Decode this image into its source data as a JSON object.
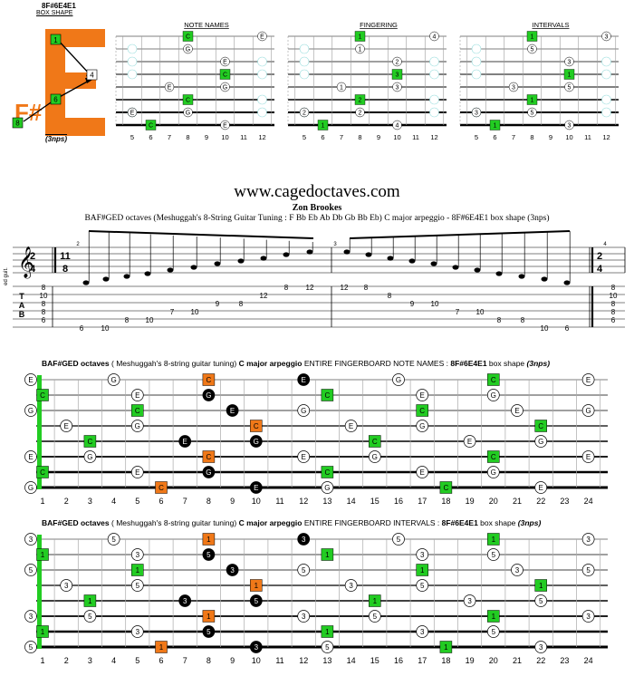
{
  "box": {
    "code": "8F#6E4E1",
    "shape_label": "BOX SHAPE",
    "big_letter": "E",
    "small_letter": "F#",
    "footnote": "(3nps)",
    "markers": [
      "1",
      "4",
      "6",
      "8"
    ]
  },
  "mini": {
    "titles": [
      "NOTE NAMES",
      "FINGERING",
      "INTERVALS"
    ],
    "frets": [
      "5",
      "6",
      "7",
      "8",
      "9",
      "10",
      "11",
      "12"
    ]
  },
  "site": "www.cagedoctaves.com",
  "author": "Zon Brookes",
  "subtitle": "BAF#GED octaves (Meshuggah's 8-String Guitar Tuning : F Bb Eb Ab Db Gb Bb Eb) C major arpeggio - 8F#6E4E1 box shape (3nps)",
  "staff": {
    "time_sig": [
      "2",
      "4"
    ],
    "time_sig2": [
      "11",
      "8"
    ],
    "instrument": "ed guit.",
    "tab_letters": [
      "T",
      "A",
      "B"
    ],
    "string_tuning_left": [
      "8",
      "10",
      "8",
      "8",
      "6"
    ],
    "string_tuning_right": [
      "8",
      "10",
      "8",
      "8",
      "6"
    ],
    "measure_numbers": [
      "2",
      "3",
      "4"
    ],
    "tab_numbers": [
      {
        "v": "6"
      },
      {
        "v": "10"
      },
      {
        "v": "8"
      },
      {
        "v": "10"
      },
      {
        "v": "7"
      },
      {
        "v": "10"
      },
      {
        "v": "9"
      },
      {
        "v": "8"
      },
      {
        "v": "12"
      },
      {
        "v": "12"
      },
      {
        "v": "8"
      },
      {
        "v": "8"
      },
      {
        "v": "9"
      },
      {
        "v": "10"
      },
      {
        "v": "7"
      },
      {
        "v": "10"
      },
      {
        "v": "8"
      },
      {
        "v": "8"
      },
      {
        "v": "10"
      },
      {
        "v": "6"
      }
    ]
  },
  "board1": {
    "title_bold1": "BAF#GED octaves",
    "title_normal1": "( Meshuggah's 8-string guitar tuning)",
    "title_bold2": "C major arpeggio",
    "title_normal2": "ENTIRE FINGERBOARD NOTE NAMES :",
    "title_bold3": "8F#6E4E1",
    "title_normal3": "box shape",
    "title_bold4": "(3nps)"
  },
  "board2": {
    "title_bold1": "BAF#GED octaves",
    "title_normal1": "( Meshuggah's 8-string guitar tuning)",
    "title_bold2": "C major arpeggio",
    "title_normal2": "ENTIRE FINGERBOARD INTERVALS :",
    "title_bold3": "8F#6E4E1",
    "title_normal3": "box shape",
    "title_bold4": "(3nps)"
  },
  "frets_long": [
    "1",
    "2",
    "3",
    "4",
    "5",
    "6",
    "7",
    "8",
    "9",
    "10",
    "11",
    "12",
    "13",
    "14",
    "15",
    "16",
    "17",
    "18",
    "19",
    "20",
    "21",
    "22",
    "23",
    "24"
  ],
  "colors": {
    "green": "#22cc22",
    "orange": "#f07818",
    "black": "#000000",
    "logo_orange": "#f07818"
  }
}
